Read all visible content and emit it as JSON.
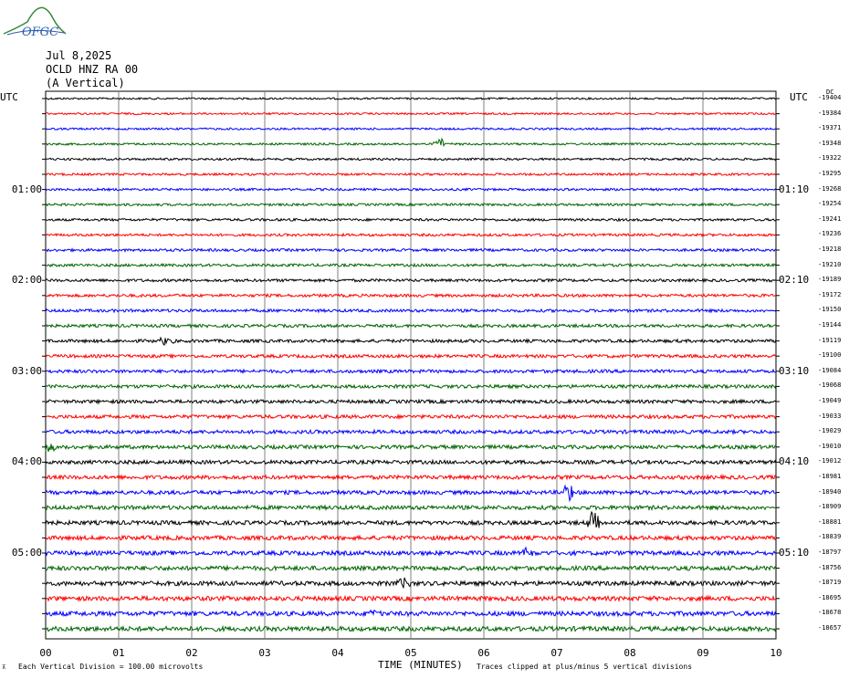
{
  "logo": {
    "text": "OFGC"
  },
  "header": {
    "date": "Jul 8,2025",
    "station": "OCLD HNZ RA 00",
    "component": "(A Vertical)"
  },
  "axis_labels": {
    "utc_left": "UTC",
    "utc_right": "UTC",
    "dc": "DC"
  },
  "colors": {
    "black": "#000000",
    "red": "#ff0000",
    "blue": "#0000ff",
    "green": "#006400",
    "grid": "#808080"
  },
  "chart_data": {
    "type": "line",
    "title": "OCLD HNZ RA 00",
    "xlabel": "TIME (MINUTES)",
    "xlim": [
      0,
      10
    ],
    "x_ticks": [
      "00",
      "01",
      "02",
      "03",
      "04",
      "05",
      "06",
      "07",
      "08",
      "09",
      "10"
    ],
    "left_time_labels": [
      {
        "row": 6,
        "text": "01:00"
      },
      {
        "row": 12,
        "text": "02:00"
      },
      {
        "row": 18,
        "text": "03:00"
      },
      {
        "row": 24,
        "text": "04:00"
      },
      {
        "row": 30,
        "text": "05:00"
      }
    ],
    "right_time_labels": [
      {
        "row": 6,
        "text": "01:10"
      },
      {
        "row": 12,
        "text": "02:10"
      },
      {
        "row": 18,
        "text": "03:10"
      },
      {
        "row": 24,
        "text": "04:10"
      },
      {
        "row": 30,
        "text": "05:10"
      }
    ],
    "trace_color_cycle": [
      "black",
      "red",
      "blue",
      "green"
    ],
    "trace_dc_offsets": [
      "-19404",
      "-19384",
      "-19371",
      "-19348",
      "-19322",
      "-19295",
      "-19268",
      "-19254",
      "-19241",
      "-19236",
      "-19218",
      "-19210",
      "-19189",
      "-19172",
      "-19150",
      "-19144",
      "-19119",
      "-19100",
      "-19084",
      "-19068",
      "-19049",
      "-19033",
      "-19029",
      "-19010",
      "-19012",
      "-18981",
      "-18940",
      "-18909",
      "-18881",
      "-18839",
      "-18797",
      "-18756",
      "-18719",
      "-18695",
      "-18678",
      "-18657"
    ],
    "events": [
      {
        "row": 3,
        "minute": 5.4,
        "amplitude": 0.4
      },
      {
        "row": 16,
        "minute": 1.65,
        "amplitude": 0.35
      },
      {
        "row": 23,
        "minute": 0.05,
        "amplitude": 0.6
      },
      {
        "row": 26,
        "minute": 7.15,
        "amplitude": 0.7
      },
      {
        "row": 28,
        "minute": 7.5,
        "amplitude": 0.8
      },
      {
        "row": 30,
        "minute": 6.6,
        "amplitude": 0.6
      },
      {
        "row": 32,
        "minute": 4.9,
        "amplitude": 0.35
      },
      {
        "row": 34,
        "minute": 4.5,
        "amplitude": 0.35
      }
    ]
  },
  "footer": {
    "division_note": "Each Vertical Division =  100.00 microvolts",
    "x_title": "TIME (MINUTES)",
    "clip_note": "Traces clipped at plus/minus 5 vertical divisions"
  }
}
